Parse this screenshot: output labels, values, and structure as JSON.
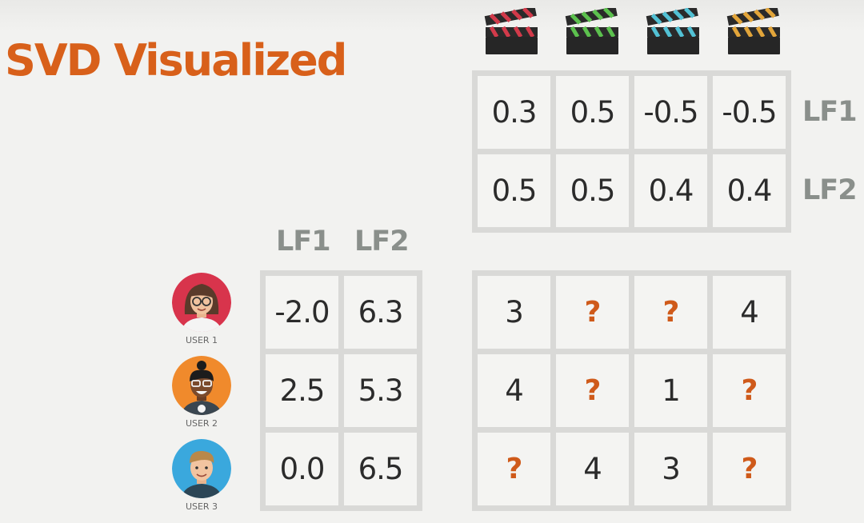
{
  "title": "SVD Visualized",
  "movies": [
    {
      "icon": "clapperboard-icon",
      "color": "#d23a4a"
    },
    {
      "icon": "clapperboard-icon",
      "color": "#5cc14e"
    },
    {
      "icon": "clapperboard-icon",
      "color": "#52c1d4"
    },
    {
      "icon": "clapperboard-icon",
      "color": "#e2a53a"
    }
  ],
  "item_factors": {
    "row_labels": [
      "LF1",
      "LF2"
    ],
    "rows": [
      [
        "0.3",
        "0.5",
        "-0.5",
        "-0.5"
      ],
      [
        "0.5",
        "0.5",
        "0.4",
        "0.4"
      ]
    ]
  },
  "user_factors": {
    "col_labels": [
      "LF1",
      "LF2"
    ],
    "rows": [
      [
        "-2.0",
        "6.3"
      ],
      [
        "2.5",
        "5.3"
      ],
      [
        "0.0",
        "6.5"
      ]
    ]
  },
  "users": [
    {
      "label": "USER 1",
      "icon": "user-avatar-icon",
      "bg": "#d8344c"
    },
    {
      "label": "USER 2",
      "icon": "user-avatar-icon",
      "bg": "#f08a2c"
    },
    {
      "label": "USER 3",
      "icon": "user-avatar-icon",
      "bg": "#3aa8dd"
    }
  ],
  "ratings": {
    "rows": [
      [
        "3",
        "?",
        "?",
        "4"
      ],
      [
        "4",
        "?",
        "1",
        "?"
      ],
      [
        "?",
        "4",
        "3",
        "?"
      ]
    ],
    "missing_color": "#cf5a1a"
  }
}
